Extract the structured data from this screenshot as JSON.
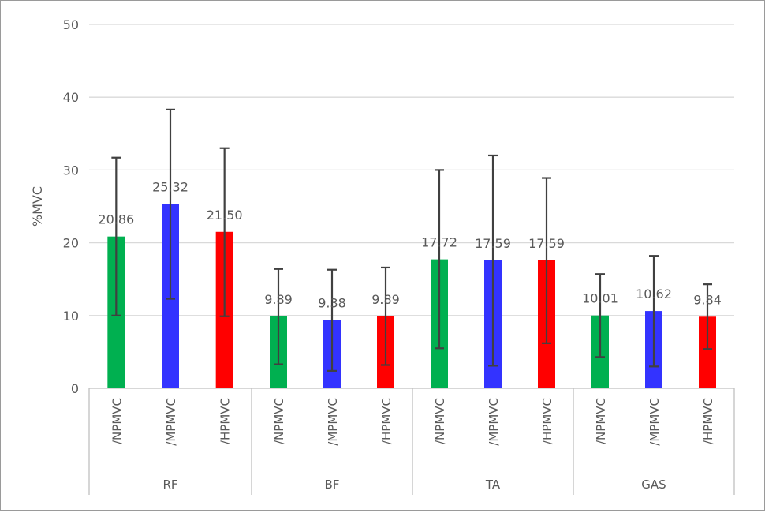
{
  "chart_data": {
    "type": "bar",
    "title": "",
    "xlabel": "",
    "ylabel": "%MVC",
    "ylim": [
      0,
      50
    ],
    "yticks": [
      0,
      10,
      20,
      30,
      40,
      50
    ],
    "grid": true,
    "legend": "none",
    "groups": [
      {
        "name": "RF",
        "bars": [
          {
            "label": "/NPMVC",
            "value": 20.86,
            "data_label": "20.86",
            "err_low": 10.0,
            "err_high": 31.7,
            "color": "#00b050"
          },
          {
            "label": "/MPMVC",
            "value": 25.32,
            "data_label": "25.32",
            "err_low": 12.3,
            "err_high": 38.3,
            "color": "#3333ff"
          },
          {
            "label": "/HPMVC",
            "value": 21.5,
            "data_label": "21.50",
            "err_low": 9.9,
            "err_high": 33.0,
            "color": "#ff0000"
          }
        ]
      },
      {
        "name": "BF",
        "bars": [
          {
            "label": "/NPMVC",
            "value": 9.89,
            "data_label": "9.89",
            "err_low": 3.3,
            "err_high": 16.4,
            "color": "#00b050"
          },
          {
            "label": "/MPMVC",
            "value": 9.38,
            "data_label": "9.38",
            "err_low": 2.4,
            "err_high": 16.3,
            "color": "#3333ff"
          },
          {
            "label": "/HPMVC",
            "value": 9.89,
            "data_label": "9.89",
            "err_low": 3.2,
            "err_high": 16.6,
            "color": "#ff0000"
          }
        ]
      },
      {
        "name": "TA",
        "bars": [
          {
            "label": "/NPMVC",
            "value": 17.72,
            "data_label": "17.72",
            "err_low": 5.5,
            "err_high": 30.0,
            "color": "#00b050"
          },
          {
            "label": "/MPMVC",
            "value": 17.59,
            "data_label": "17.59",
            "err_low": 3.1,
            "err_high": 32.0,
            "color": "#3333ff"
          },
          {
            "label": "/HPMVC",
            "value": 17.59,
            "data_label": "17.59",
            "err_low": 6.2,
            "err_high": 28.9,
            "color": "#ff0000"
          }
        ]
      },
      {
        "name": "GAS",
        "bars": [
          {
            "label": "/NPMVC",
            "value": 10.01,
            "data_label": "10.01",
            "err_low": 4.3,
            "err_high": 15.7,
            "color": "#00b050"
          },
          {
            "label": "/MPMVC",
            "value": 10.62,
            "data_label": "10.62",
            "err_low": 3.0,
            "err_high": 18.2,
            "color": "#3333ff"
          },
          {
            "label": "/HPMVC",
            "value": 9.84,
            "data_label": "9.84",
            "err_low": 5.4,
            "err_high": 14.3,
            "color": "#ff0000"
          }
        ]
      }
    ]
  }
}
